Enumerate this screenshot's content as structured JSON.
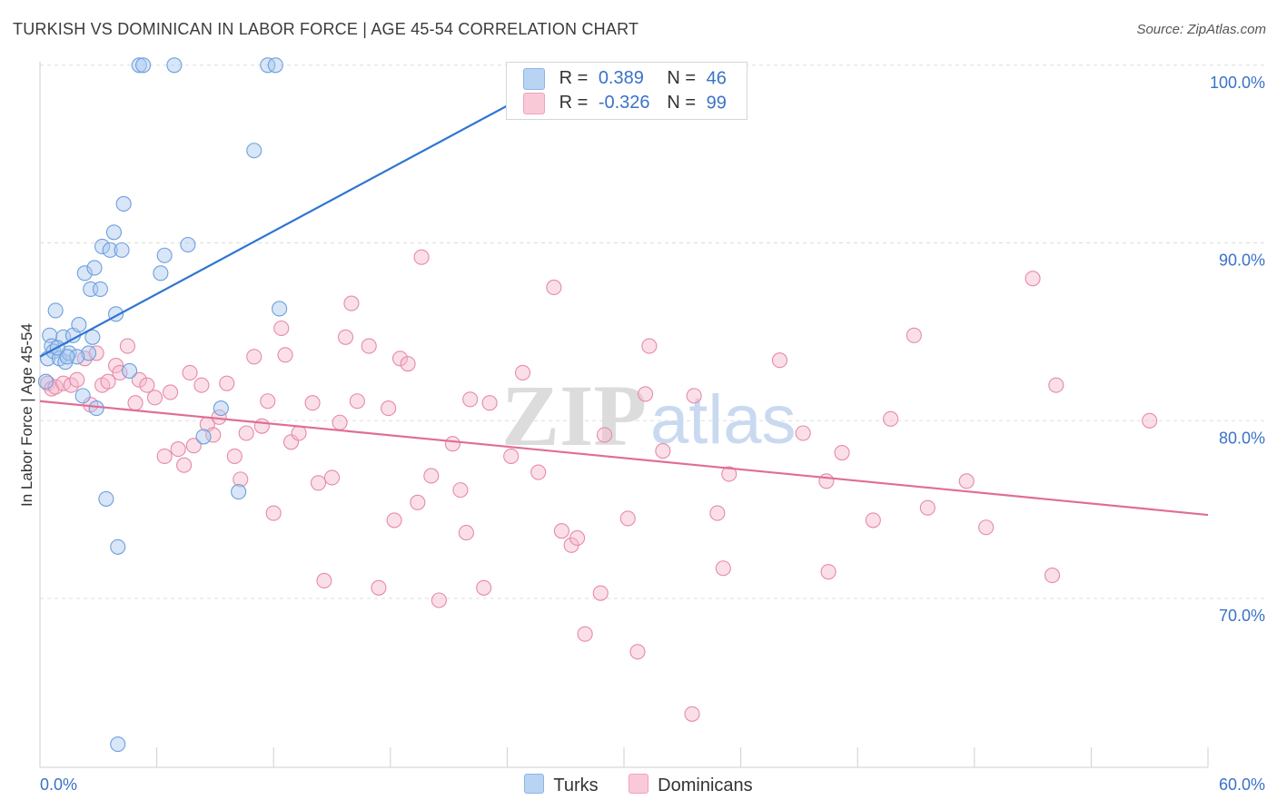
{
  "header": {
    "title": "TURKISH VS DOMINICAN IN LABOR FORCE | AGE 45-54 CORRELATION CHART",
    "source": "Source: ZipAtlas.com"
  },
  "legend_top": {
    "turks": {
      "r_label": "R =",
      "r_value": "0.389",
      "n_label": "N =",
      "n_value": "46"
    },
    "dominicans": {
      "r_label": "R =",
      "r_value": "-0.326",
      "n_label": "N =",
      "n_value": "99"
    }
  },
  "legend_bottom": {
    "turks": "Turks",
    "dominicans": "Dominicans"
  },
  "watermark": {
    "zip": "ZIP",
    "atlas": "atlas"
  },
  "colors": {
    "turks_fill": "#a9c8ef",
    "turks_stroke": "#6d9fdc",
    "turks_line": "#2f75d2",
    "dom_fill": "#f6b8cc",
    "dom_stroke": "#e68aa8",
    "dom_line": "#e06d96",
    "tick_text": "#3a72c8",
    "grid": "#dddddd"
  },
  "chart_data": {
    "type": "scatter",
    "title": "TURKISH VS DOMINICAN IN LABOR FORCE | AGE 45-54 CORRELATION CHART",
    "xlabel": "",
    "ylabel": "In Labor Force | Age 45-54",
    "xlim": [
      0,
      60
    ],
    "ylim": [
      60.5,
      100.5
    ],
    "x_tick_labels": [
      "0.0%",
      "60.0%"
    ],
    "y_ticks": [
      70,
      80,
      90,
      100
    ],
    "y_tick_labels": [
      "70.0%",
      "80.0%",
      "90.0%",
      "100.0%"
    ],
    "grid": true,
    "series": [
      {
        "name": "Turks",
        "points": [
          [
            0.3,
            82.2
          ],
          [
            0.4,
            83.5
          ],
          [
            0.5,
            84.8
          ],
          [
            0.6,
            84.2
          ],
          [
            0.7,
            83.9
          ],
          [
            0.8,
            86.2
          ],
          [
            1.0,
            83.5
          ],
          [
            1.2,
            84.7
          ],
          [
            1.3,
            83.3
          ],
          [
            1.5,
            83.8
          ],
          [
            1.7,
            84.8
          ],
          [
            2.0,
            85.4
          ],
          [
            2.2,
            81.4
          ],
          [
            2.3,
            88.3
          ],
          [
            2.5,
            83.8
          ],
          [
            2.6,
            87.4
          ],
          [
            2.8,
            88.6
          ],
          [
            2.9,
            80.7
          ],
          [
            3.1,
            87.4
          ],
          [
            3.2,
            89.8
          ],
          [
            3.4,
            75.6
          ],
          [
            3.6,
            89.6
          ],
          [
            3.8,
            90.6
          ],
          [
            3.9,
            86.0
          ],
          [
            4.0,
            72.9
          ],
          [
            4.2,
            89.6
          ],
          [
            4.3,
            92.2
          ],
          [
            4.6,
            82.8
          ],
          [
            5.1,
            100.0
          ],
          [
            5.3,
            100.0
          ],
          [
            6.2,
            88.3
          ],
          [
            6.4,
            89.3
          ],
          [
            6.9,
            100.0
          ],
          [
            7.6,
            89.9
          ],
          [
            8.4,
            79.1
          ],
          [
            9.3,
            80.7
          ],
          [
            10.2,
            76.0
          ],
          [
            11.0,
            95.2
          ],
          [
            11.7,
            100.0
          ],
          [
            12.1,
            100.0
          ],
          [
            12.3,
            86.3
          ],
          [
            4.0,
            61.8
          ],
          [
            2.7,
            84.7
          ],
          [
            1.9,
            83.6
          ],
          [
            1.4,
            83.6
          ],
          [
            0.9,
            84.1
          ]
        ],
        "trend": {
          "x": [
            0,
            27.2
          ],
          "y": [
            83.6,
            99.6
          ]
        }
      },
      {
        "name": "Dominicans",
        "points": [
          [
            0.4,
            82.1
          ],
          [
            0.6,
            81.8
          ],
          [
            0.8,
            81.9
          ],
          [
            1.2,
            82.1
          ],
          [
            1.6,
            82.0
          ],
          [
            1.9,
            82.3
          ],
          [
            2.3,
            83.5
          ],
          [
            2.6,
            80.9
          ],
          [
            2.9,
            83.8
          ],
          [
            3.2,
            82.0
          ],
          [
            3.5,
            82.2
          ],
          [
            3.9,
            83.1
          ],
          [
            4.1,
            82.7
          ],
          [
            4.5,
            84.2
          ],
          [
            4.9,
            81.0
          ],
          [
            5.1,
            82.3
          ],
          [
            5.5,
            82.0
          ],
          [
            5.9,
            81.3
          ],
          [
            6.4,
            78.0
          ],
          [
            6.7,
            81.6
          ],
          [
            7.1,
            78.4
          ],
          [
            7.4,
            77.5
          ],
          [
            7.7,
            82.7
          ],
          [
            7.9,
            78.6
          ],
          [
            8.3,
            82.0
          ],
          [
            8.6,
            79.8
          ],
          [
            8.9,
            79.2
          ],
          [
            9.2,
            80.2
          ],
          [
            9.6,
            82.1
          ],
          [
            10.0,
            78.0
          ],
          [
            10.3,
            76.7
          ],
          [
            10.6,
            79.3
          ],
          [
            11.0,
            83.6
          ],
          [
            11.4,
            79.7
          ],
          [
            11.7,
            81.1
          ],
          [
            12.0,
            74.8
          ],
          [
            12.4,
            85.2
          ],
          [
            12.6,
            83.7
          ],
          [
            12.9,
            78.8
          ],
          [
            13.3,
            79.3
          ],
          [
            14.0,
            81.0
          ],
          [
            14.3,
            76.5
          ],
          [
            14.6,
            71.0
          ],
          [
            15.0,
            76.8
          ],
          [
            15.4,
            79.9
          ],
          [
            15.7,
            84.7
          ],
          [
            16.0,
            86.6
          ],
          [
            16.3,
            81.1
          ],
          [
            16.9,
            84.2
          ],
          [
            17.4,
            70.6
          ],
          [
            17.9,
            80.7
          ],
          [
            18.2,
            74.4
          ],
          [
            18.5,
            83.5
          ],
          [
            18.9,
            83.2
          ],
          [
            19.4,
            75.4
          ],
          [
            19.6,
            89.2
          ],
          [
            20.1,
            76.9
          ],
          [
            20.5,
            69.9
          ],
          [
            21.2,
            78.7
          ],
          [
            21.6,
            76.1
          ],
          [
            21.9,
            73.7
          ],
          [
            22.1,
            81.2
          ],
          [
            22.8,
            70.6
          ],
          [
            23.1,
            81.0
          ],
          [
            24.2,
            78.0
          ],
          [
            24.8,
            82.7
          ],
          [
            25.6,
            77.1
          ],
          [
            26.4,
            87.5
          ],
          [
            26.8,
            73.8
          ],
          [
            27.3,
            73.0
          ],
          [
            27.6,
            73.4
          ],
          [
            28.0,
            68.0
          ],
          [
            28.8,
            70.3
          ],
          [
            29.0,
            79.2
          ],
          [
            30.2,
            74.5
          ],
          [
            30.7,
            67.0
          ],
          [
            31.1,
            81.5
          ],
          [
            31.3,
            84.2
          ],
          [
            32.0,
            78.3
          ],
          [
            33.5,
            63.5
          ],
          [
            33.6,
            81.4
          ],
          [
            34.8,
            74.8
          ],
          [
            35.1,
            71.7
          ],
          [
            35.4,
            77.0
          ],
          [
            38.0,
            83.4
          ],
          [
            39.2,
            79.3
          ],
          [
            40.4,
            76.6
          ],
          [
            40.5,
            71.5
          ],
          [
            41.2,
            78.2
          ],
          [
            42.8,
            74.4
          ],
          [
            43.7,
            80.1
          ],
          [
            44.9,
            84.8
          ],
          [
            45.6,
            75.1
          ],
          [
            47.6,
            76.6
          ],
          [
            48.6,
            74.0
          ],
          [
            51.0,
            88.0
          ],
          [
            52.0,
            71.3
          ],
          [
            52.2,
            82.0
          ],
          [
            57.0,
            80.0
          ]
        ],
        "trend": {
          "x": [
            0,
            60
          ],
          "y": [
            81.1,
            74.7
          ]
        }
      }
    ]
  }
}
